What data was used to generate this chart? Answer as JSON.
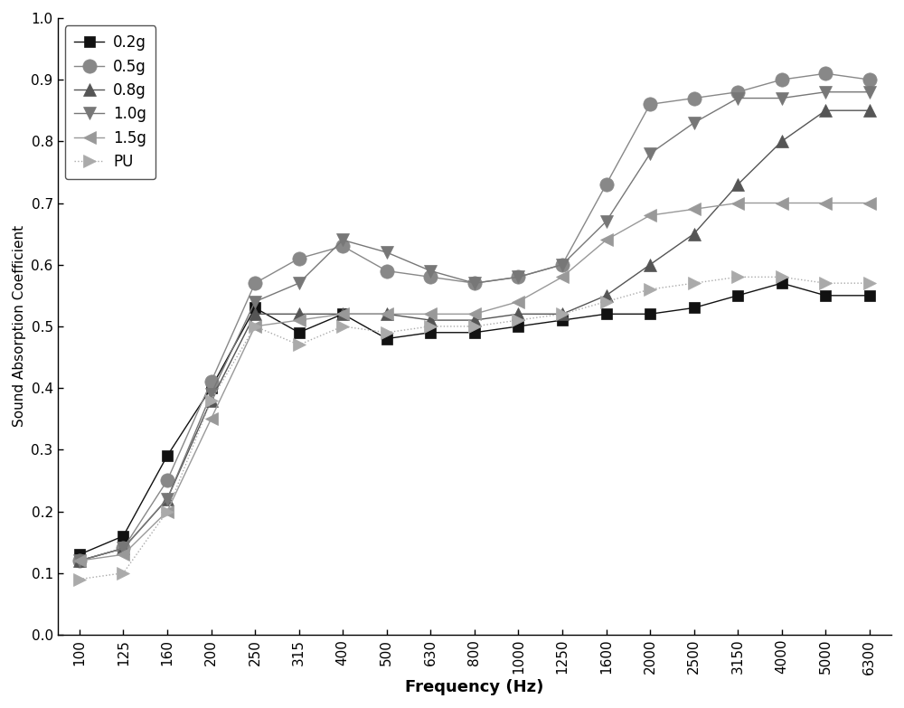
{
  "frequencies": [
    100,
    125,
    160,
    200,
    250,
    315,
    400,
    500,
    630,
    800,
    1000,
    1250,
    1600,
    2000,
    2500,
    3150,
    4000,
    5000,
    6300
  ],
  "series": {
    "0.2g": {
      "values": [
        0.13,
        0.16,
        0.29,
        0.4,
        0.53,
        0.49,
        0.52,
        0.48,
        0.49,
        0.49,
        0.5,
        0.51,
        0.52,
        0.52,
        0.53,
        0.55,
        0.57,
        0.55,
        0.55
      ],
      "color": "#111111",
      "marker": "s",
      "markersize": 8,
      "linestyle": "-",
      "linewidth": 1.0,
      "markerfacecolor": "#111111"
    },
    "0.5g": {
      "values": [
        0.12,
        0.14,
        0.25,
        0.41,
        0.57,
        0.61,
        0.63,
        0.59,
        0.58,
        0.57,
        0.58,
        0.6,
        0.73,
        0.86,
        0.87,
        0.88,
        0.9,
        0.91,
        0.9
      ],
      "color": "#888888",
      "marker": "o",
      "markersize": 11,
      "linestyle": "-",
      "linewidth": 1.0,
      "markerfacecolor": "#888888"
    },
    "0.8g": {
      "values": [
        0.12,
        0.14,
        0.22,
        0.38,
        0.52,
        0.52,
        0.52,
        0.52,
        0.51,
        0.51,
        0.52,
        0.52,
        0.55,
        0.6,
        0.65,
        0.73,
        0.8,
        0.85,
        0.85
      ],
      "color": "#555555",
      "marker": "^",
      "markersize": 10,
      "linestyle": "-",
      "linewidth": 1.0,
      "markerfacecolor": "#555555"
    },
    "1.0g": {
      "values": [
        0.12,
        0.14,
        0.22,
        0.39,
        0.54,
        0.57,
        0.64,
        0.62,
        0.59,
        0.57,
        0.58,
        0.6,
        0.67,
        0.78,
        0.83,
        0.87,
        0.87,
        0.88,
        0.88
      ],
      "color": "#777777",
      "marker": "v",
      "markersize": 10,
      "linestyle": "-",
      "linewidth": 1.0,
      "markerfacecolor": "#777777"
    },
    "1.5g": {
      "values": [
        0.12,
        0.13,
        0.2,
        0.35,
        0.5,
        0.51,
        0.52,
        0.52,
        0.52,
        0.52,
        0.54,
        0.58,
        0.64,
        0.68,
        0.69,
        0.7,
        0.7,
        0.7,
        0.7
      ],
      "color": "#999999",
      "marker": "<",
      "markersize": 10,
      "linestyle": "-",
      "linewidth": 1.0,
      "markerfacecolor": "#999999"
    },
    "PU": {
      "values": [
        0.09,
        0.1,
        0.2,
        0.38,
        0.5,
        0.47,
        0.5,
        0.49,
        0.5,
        0.5,
        0.51,
        0.52,
        0.54,
        0.56,
        0.57,
        0.58,
        0.58,
        0.57,
        0.57
      ],
      "color": "#aaaaaa",
      "marker": ">",
      "markersize": 10,
      "linestyle": ":",
      "linewidth": 1.0,
      "markerfacecolor": "#aaaaaa"
    }
  },
  "xtick_labels": [
    "100",
    "125",
    "160",
    "200",
    "250",
    "315",
    "400",
    "500",
    "630",
    "800",
    "1000",
    "1250",
    "1600",
    "2000",
    "2500",
    "3150",
    "4000",
    "5000",
    "6300"
  ],
  "ylabel": "Sound Absorption Coefficient",
  "xlabel": "Frequency (Hz)",
  "ylim": [
    0.0,
    1.0
  ],
  "yticks": [
    0.0,
    0.1,
    0.2,
    0.3,
    0.4,
    0.5,
    0.6,
    0.7,
    0.8,
    0.9,
    1.0
  ],
  "legend_order": [
    "0.2g",
    "0.5g",
    "0.8g",
    "1.0g",
    "1.5g",
    "PU"
  ],
  "background_color": "#ffffff",
  "figsize": [
    10.0,
    7.83
  ],
  "dpi": 100
}
